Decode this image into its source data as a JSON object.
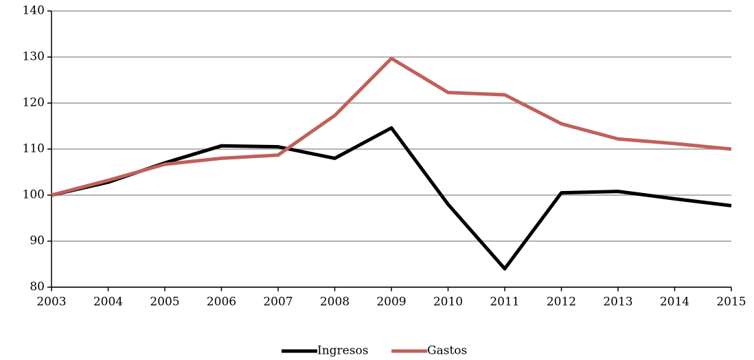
{
  "chart_data": {
    "type": "line",
    "x": [
      2003,
      2004,
      2005,
      2006,
      2007,
      2008,
      2009,
      2010,
      2011,
      2012,
      2013,
      2014,
      2015
    ],
    "xlim": [
      2003,
      2015
    ],
    "xticks": [
      2003,
      2004,
      2005,
      2006,
      2007,
      2008,
      2009,
      2010,
      2011,
      2012,
      2013,
      2014,
      2015
    ],
    "ylim": [
      80,
      140
    ],
    "yticks": [
      80,
      90,
      100,
      110,
      120,
      130,
      140
    ],
    "grid": true,
    "legend": "bottom",
    "series": [
      {
        "name": "Ingresos",
        "color": "#000000",
        "values": [
          100,
          102.8,
          107,
          110.7,
          110.5,
          108,
          114.6,
          98,
          84,
          100.5,
          100.8,
          99.2,
          97.7
        ]
      },
      {
        "name": "Gastos",
        "color": "#c0605a",
        "values": [
          100,
          103.2,
          106.7,
          108,
          108.7,
          117.3,
          129.7,
          122.3,
          121.8,
          115.5,
          112.2,
          111.2,
          110
        ]
      }
    ]
  }
}
